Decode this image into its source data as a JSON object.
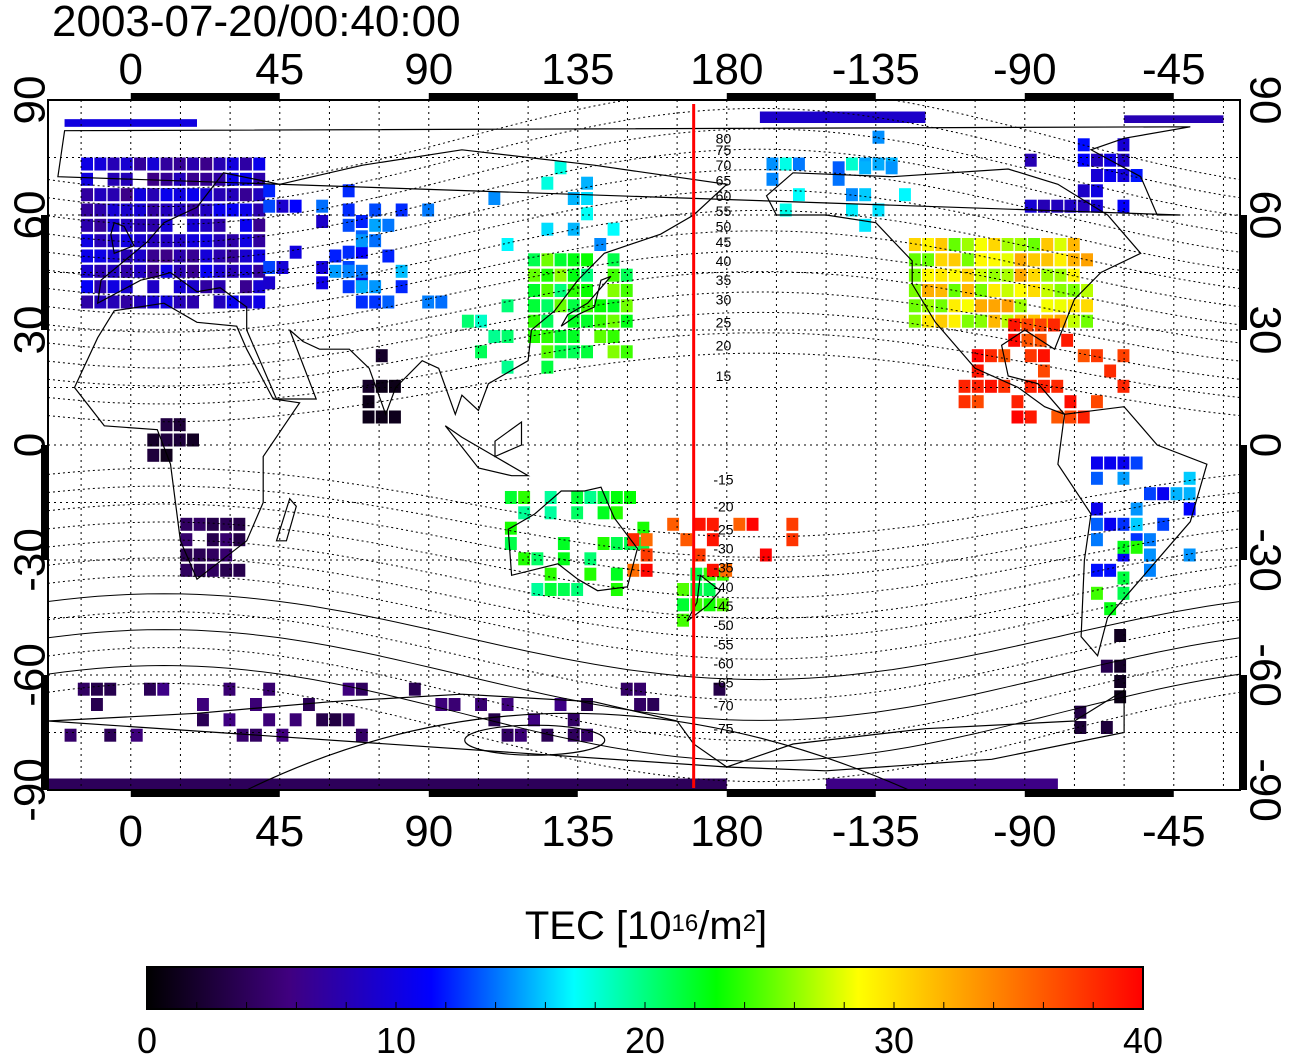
{
  "title": "2003-07-20/00:40:00",
  "map": {
    "lon_range": [
      -25,
      335
    ],
    "lat_range": [
      -90,
      90
    ],
    "top_lon_labels": [
      "0",
      "45",
      "90",
      "135",
      "180",
      "-135",
      "-90",
      "-45"
    ],
    "bottom_lon_labels": [
      "0",
      "45",
      "90",
      "135",
      "180",
      "-135",
      "-90",
      "-45"
    ],
    "lat_labels": [
      "90",
      "60",
      "30",
      "0",
      "-30",
      "-60",
      "-90"
    ],
    "meridian_line_color": "#ff0000",
    "meridian_line_lon": 170,
    "contour_labels": [
      "80",
      "75",
      "70",
      "65",
      "60",
      "55",
      "50",
      "45",
      "40",
      "35",
      "30",
      "25",
      "20",
      "15",
      "-15",
      "-20",
      "-25",
      "-30",
      "-35",
      "-40",
      "-45",
      "-50",
      "-55",
      "-60",
      "-65",
      "-70",
      "-75"
    ]
  },
  "colorbar": {
    "title_main": "TEC  [10",
    "title_exp": "16",
    "title_unit": "/m",
    "title_exp2": "2",
    "title_end": "]",
    "min": 0,
    "max": 40,
    "tick_labels": [
      "0",
      "10",
      "20",
      "30",
      "40"
    ],
    "stops": [
      "#000000",
      "#400080",
      "#0000ff",
      "#00ffff",
      "#00ff00",
      "#ffff00",
      "#ff8000",
      "#ff0000"
    ]
  }
}
